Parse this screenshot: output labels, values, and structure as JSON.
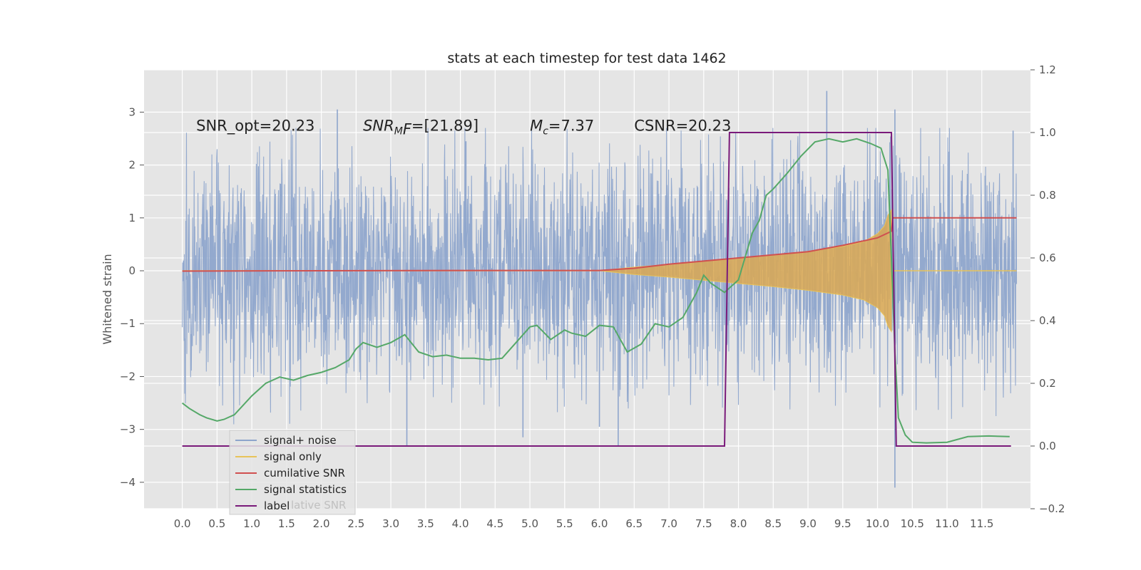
{
  "chart_data": {
    "type": "line",
    "title": "stats at each timestep for test data 1462",
    "ylabel": "Whitened strain",
    "xlim": [
      -0.55,
      12.2
    ],
    "ylim": [
      -4.5,
      3.8
    ],
    "y2lim": [
      -0.2,
      1.2
    ],
    "x_ticks": [
      0.0,
      0.5,
      1.0,
      1.5,
      2.0,
      2.5,
      3.0,
      3.5,
      4.0,
      4.5,
      5.0,
      5.5,
      6.0,
      6.5,
      7.0,
      7.5,
      8.0,
      8.5,
      9.0,
      9.5,
      10.0,
      10.5,
      11.0,
      11.5
    ],
    "x_tick_labels": [
      "0.0",
      "0.5",
      "1.0",
      "1.5",
      "2.0",
      "2.5",
      "3.0",
      "3.5",
      "4.0",
      "4.5",
      "5.0",
      "5.5",
      "6.0",
      "6.5",
      "7.0",
      "7.5",
      "8.0",
      "8.5",
      "9.0",
      "9.5",
      "10.0",
      "10.5",
      "11.0",
      "11.5"
    ],
    "y_ticks": [
      3,
      2,
      1,
      0,
      -1,
      -2,
      -3,
      -4
    ],
    "y_tick_labels": [
      "3",
      "2",
      "1",
      "0",
      "−1",
      "−2",
      "−3",
      "−4"
    ],
    "y2_ticks": [
      1.2,
      1.0,
      0.8,
      0.6,
      0.4,
      0.2,
      0.0,
      -0.2
    ],
    "y2_tick_labels": [
      "1.2",
      "1.0",
      "0.8",
      "0.6",
      "0.4",
      "0.2",
      "0.0",
      "−0.2"
    ],
    "grid": true,
    "legend_position": "lower-left",
    "annotations": [
      {
        "name": "snr-opt",
        "x": 0.2,
        "y": 2.65,
        "text": "SNR_opt=20.23"
      },
      {
        "name": "snr-mf",
        "x": 2.6,
        "y": 2.65,
        "prefix": "SNR",
        "sub": "M",
        "suffix": "F=[21.89]"
      },
      {
        "name": "mc",
        "x": 5.0,
        "y": 2.65,
        "prefix": "M",
        "sub": "c",
        "suffix": "=7.37"
      },
      {
        "name": "csnr",
        "x": 6.5,
        "y": 2.65,
        "text": "CSNR=20.23"
      }
    ],
    "series": [
      {
        "name": "signal+ noise",
        "color": "#8ea5cc",
        "axis": "left",
        "noise_band": {
          "x_start": 0.0,
          "x_end": 12.0,
          "typical_low": -1.45,
          "typical_high": 1.45,
          "peak_low": -3.0,
          "peak_high": 2.7
        },
        "spikes": [
          [
            3.23,
            -3.3
          ],
          [
            4.08,
            2.45
          ],
          [
            4.9,
            -3.15
          ],
          [
            6.0,
            -2.95
          ],
          [
            6.27,
            -3.3
          ],
          [
            9.27,
            3.4
          ],
          [
            10.25,
            3.05
          ],
          [
            10.25,
            -4.1
          ],
          [
            2.23,
            3.05
          ],
          [
            11.95,
            2.65
          ]
        ]
      },
      {
        "name": "signal only",
        "color": "#e8c35a",
        "axis": "left",
        "envelope": {
          "x": [
            6.0,
            6.5,
            7.0,
            7.5,
            8.0,
            8.5,
            9.0,
            9.5,
            9.8,
            10.0,
            10.1,
            10.15,
            10.2
          ],
          "amplitude": [
            0.0,
            0.07,
            0.12,
            0.18,
            0.24,
            0.3,
            0.37,
            0.46,
            0.55,
            0.7,
            0.85,
            1.05,
            1.15
          ]
        },
        "after_x": 10.22,
        "after_value": 0.0
      },
      {
        "name": "cumilative SNR",
        "color": "#d05050",
        "axis": "right",
        "x": [
          0.0,
          2.0,
          4.0,
          6.0,
          6.5,
          7.0,
          7.5,
          8.0,
          8.5,
          9.0,
          9.5,
          10.0,
          10.2,
          10.22,
          12.0
        ],
        "y": [
          0.558,
          0.559,
          0.56,
          0.56,
          0.567,
          0.58,
          0.59,
          0.6,
          0.61,
          0.62,
          0.64,
          0.664,
          0.685,
          0.728,
          0.728
        ]
      },
      {
        "name": "signal statistics",
        "color": "#55a868",
        "axis": "right",
        "x": [
          0.0,
          0.1,
          0.25,
          0.35,
          0.5,
          0.6,
          0.75,
          1.0,
          1.2,
          1.4,
          1.6,
          1.8,
          2.0,
          2.2,
          2.4,
          2.5,
          2.6,
          2.8,
          3.0,
          3.2,
          3.4,
          3.6,
          3.8,
          4.0,
          4.2,
          4.4,
          4.6,
          4.8,
          5.0,
          5.1,
          5.3,
          5.5,
          5.6,
          5.8,
          6.0,
          6.2,
          6.4,
          6.6,
          6.8,
          7.0,
          7.2,
          7.4,
          7.5,
          7.6,
          7.8,
          8.0,
          8.2,
          8.3,
          8.4,
          8.5,
          8.7,
          8.9,
          9.1,
          9.3,
          9.5,
          9.7,
          9.9,
          10.05,
          10.15,
          10.2,
          10.25,
          10.3,
          10.4,
          10.5,
          10.7,
          11.0,
          11.3,
          11.6,
          11.9
        ],
        "y": [
          0.137,
          0.12,
          0.1,
          0.09,
          0.08,
          0.085,
          0.1,
          0.16,
          0.2,
          0.22,
          0.21,
          0.225,
          0.235,
          0.25,
          0.275,
          0.31,
          0.33,
          0.315,
          0.33,
          0.355,
          0.3,
          0.285,
          0.29,
          0.28,
          0.28,
          0.275,
          0.28,
          0.33,
          0.38,
          0.385,
          0.34,
          0.37,
          0.36,
          0.35,
          0.385,
          0.38,
          0.3,
          0.325,
          0.39,
          0.38,
          0.41,
          0.49,
          0.545,
          0.52,
          0.49,
          0.53,
          0.68,
          0.72,
          0.8,
          0.82,
          0.87,
          0.925,
          0.97,
          0.98,
          0.97,
          0.98,
          0.965,
          0.95,
          0.88,
          0.6,
          0.3,
          0.09,
          0.035,
          0.012,
          0.01,
          0.012,
          0.03,
          0.032,
          0.03
        ]
      },
      {
        "name": "label",
        "color": "#7a1a7a",
        "axis": "right",
        "x": [
          0.0,
          7.8,
          7.87,
          10.2,
          10.27,
          11.92
        ],
        "y": [
          0.0,
          0.0,
          1.0,
          1.0,
          0.0,
          0.0
        ]
      }
    ],
    "legend_ghost_text": "lative SNR"
  }
}
